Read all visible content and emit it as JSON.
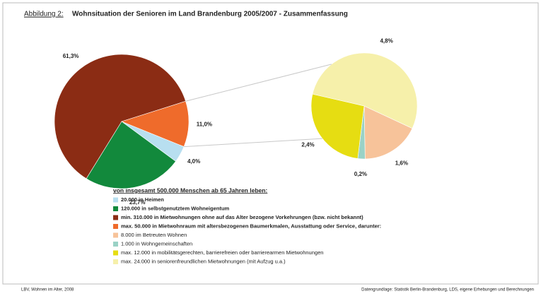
{
  "figure_label": "Abbildung 2:",
  "chart_data": [
    {
      "type": "pie",
      "title": "Wohnsituation der Senioren im Land Brandenburg 2005/2007 - Zusammenfassung",
      "legend_title": "von insgesamt 500.000 Menschen ab 65 Jahren leben:",
      "categories": [
        "20.000 in Heimen",
        "120.000 in selbstgenutztem Wohneigentum",
        "min. 310.000 in Mietwohnungen ohne auf das Alter bezogene Vorkehrungen (bzw. nicht bekannt)",
        "max. 50.000 in Mietwohnraum mit altersbezogenen Baumerkmalen, Ausstattung oder Service, darunter:"
      ],
      "values": [
        4.0,
        23.7,
        61.3,
        11.0
      ],
      "value_labels": [
        "4,0%",
        "23,7%",
        "61,3%",
        "11,0%"
      ],
      "colors": [
        "#b8dff0",
        "#12893c",
        "#8b2c14",
        "#ef6b2b"
      ]
    },
    {
      "type": "pie",
      "categories": [
        "8.000 im Betreuten Wohnen",
        "1.000 in Wohngemeinschaften",
        "max. 12.000 in mobilitätsgerechten, barrierefreien oder barrierearmen Mietwohnungen",
        "max. 24.000 in seniorenfreundlichen Mietwohnungen (mit Aufzug u.a.)"
      ],
      "values": [
        1.6,
        0.2,
        2.4,
        4.8
      ],
      "value_labels": [
        "1,6%",
        "0,2%",
        "2,4%",
        "4,8%"
      ],
      "colors": [
        "#f7c39a",
        "#9ad2c6",
        "#e6dd12",
        "#f6f0aa"
      ]
    }
  ],
  "footer": {
    "left": "LBV, Wohnen im Alter, 2008",
    "right": "Datengrundlage: Statistik Berlin-Brandenburg, LDS, eigene Erhebungen und Berechnungen"
  }
}
